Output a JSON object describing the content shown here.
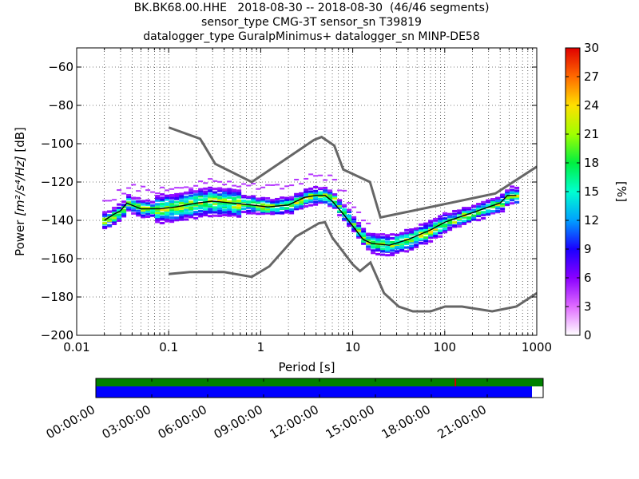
{
  "title": {
    "line1": "BK.BK68.00.HHE   2018-08-30 -- 2018-08-30  (46/46 segments)",
    "line2": "sensor_type CMG-3T sensor_sn T39819",
    "line3": "datalogger_type GuralpMinimus+ datalogger_sn MINP-DE58"
  },
  "chart_data": {
    "type": "heatmap",
    "xlabel": "Period [s]",
    "ylabel_prefix": "Power ",
    "ylabel_units": "[m²/s⁴/Hz]",
    "ylabel_suffix": " [dB]",
    "x_scale": "log",
    "xlim": [
      0.01,
      1000
    ],
    "ylim": [
      -200,
      -50
    ],
    "x_ticks": [
      0.01,
      0.1,
      1,
      10,
      100,
      1000
    ],
    "x_tick_labels": [
      "0.01",
      "0.1",
      "1",
      "10",
      "100",
      "1000"
    ],
    "y_ticks": [
      -200,
      -180,
      -160,
      -140,
      -120,
      -100,
      -80,
      -60
    ],
    "y_tick_labels": [
      "−200",
      "−180",
      "−160",
      "−140",
      "−120",
      "−100",
      "−80",
      "−60"
    ],
    "grid": true,
    "colorbar": {
      "label": "[%]",
      "range": [
        0,
        30
      ],
      "ticks": [
        0,
        3,
        6,
        9,
        12,
        15,
        18,
        21,
        24,
        27,
        30
      ],
      "tick_labels": [
        "0",
        "3",
        "6",
        "9",
        "12",
        "15",
        "18",
        "21",
        "24",
        "27",
        "30"
      ]
    },
    "mean_psd": {
      "period": [
        0.02,
        0.025,
        0.03,
        0.035,
        0.05,
        0.08,
        0.12,
        0.2,
        0.3,
        0.5,
        0.8,
        1.2,
        2,
        3,
        4,
        5,
        6,
        8,
        10,
        13,
        16,
        25,
        40,
        70,
        100,
        150,
        200,
        300,
        400,
        480,
        600
      ],
      "db": [
        -140,
        -137,
        -135,
        -131,
        -134,
        -134,
        -133,
        -131,
        -130,
        -131,
        -132,
        -133,
        -132,
        -128,
        -127,
        -127,
        -130,
        -137,
        -143,
        -150,
        -152,
        -153,
        -150,
        -145,
        -141,
        -138,
        -136,
        -133,
        -131,
        -127,
        -127
      ]
    },
    "nlnm": {
      "period": [
        0.1,
        0.17,
        0.4,
        0.8,
        1.24,
        2.4,
        4.3,
        5,
        6,
        10,
        12,
        15.6,
        21.9,
        31.6,
        45,
        70,
        101,
        154,
        328,
        600,
        1000
      ],
      "db": [
        -168,
        -167,
        -167,
        -169.5,
        -164,
        -148.5,
        -141.5,
        -141,
        -149,
        -163,
        -166.5,
        -162,
        -178,
        -185,
        -187.5,
        -187.5,
        -185,
        -185,
        -187.5,
        -185,
        -178
      ]
    },
    "nhnm": {
      "period": [
        0.1,
        0.22,
        0.32,
        0.8,
        3.8,
        4.6,
        6.3,
        7.9,
        15.4,
        20,
        354.8,
        1000
      ],
      "db": [
        -91.5,
        -97.4,
        -110.5,
        -120,
        -98,
        -96.5,
        -101,
        -113.5,
        -120,
        -138.5,
        -126,
        -112
      ]
    }
  },
  "timeline": {
    "labels": [
      "00:00:00",
      "03:00:00",
      "06:00:00",
      "09:00:00",
      "12:00:00",
      "15:00:00",
      "18:00:00",
      "21:00:00"
    ],
    "data_available_fraction": 0.975,
    "gap_marker_fraction": 0.802,
    "colors": {
      "top": "#008000",
      "bottom": "#0000ff",
      "marker": "#cc0000"
    }
  }
}
